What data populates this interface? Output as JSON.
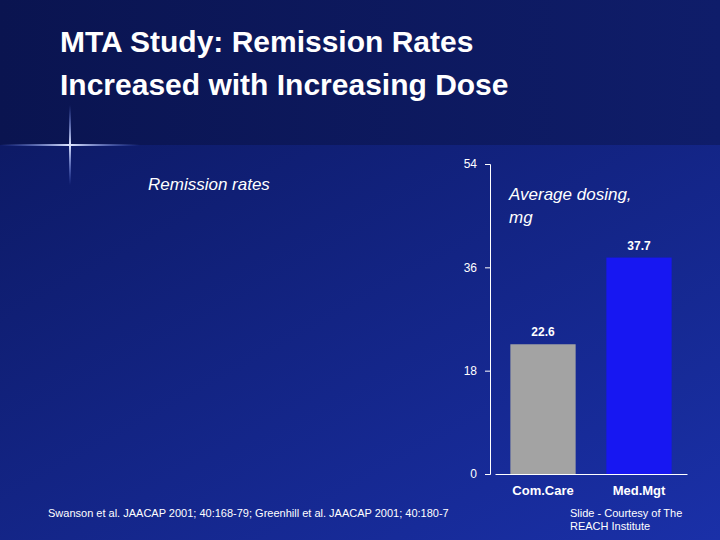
{
  "chart_data": {
    "type": "bar",
    "title": "MTA Study: Remission Rates Increased with Increasing Dose",
    "y_label": "Average dosing, mg",
    "annotations": [
      "Remission rates"
    ],
    "source": "Swanson et al. JAACAP 2001; 40:168-79; Greenhill et al. JAACAP 2001; 40:180-7",
    "credit": "Slide - Courtesy of The REACH Institute",
    "categories": [
      "Com.Care",
      "Med.Mgt"
    ],
    "values": [
      22.6,
      37.7
    ],
    "colors": [
      "#a3a3a3",
      "#1717f2"
    ],
    "ylim": [
      0,
      54
    ],
    "yticks": [
      0,
      18,
      36,
      54
    ],
    "data_labels": true
  }
}
